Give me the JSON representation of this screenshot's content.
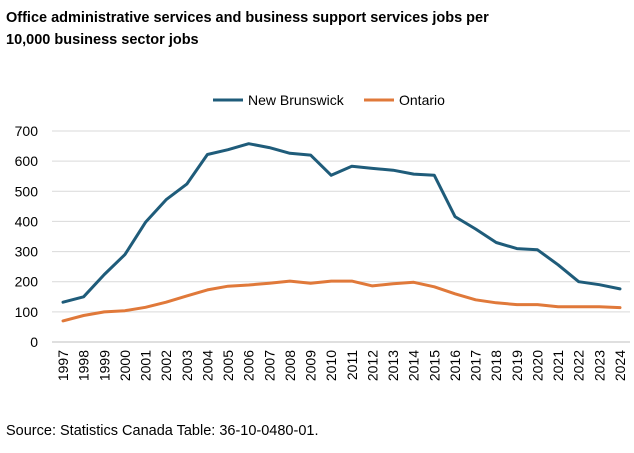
{
  "chart_data": {
    "type": "line",
    "title_lines": [
      "Office administrative services and business support services  jobs per",
      "10,000 business sector jobs"
    ],
    "categories": [
      "1997",
      "1998",
      "1999",
      "2000",
      "2001",
      "2002",
      "2003",
      "2004",
      "2005",
      "2006",
      "2007",
      "2008",
      "2009",
      "2010",
      "2011",
      "2012",
      "2013",
      "2014",
      "2015",
      "2016",
      "2017",
      "2018",
      "2019",
      "2020",
      "2021",
      "2022",
      "2023",
      "2024"
    ],
    "series": [
      {
        "name": "New Brunswick",
        "color": "#1f5c7a",
        "values": [
          132,
          150,
          224,
          290,
          397,
          472,
          524,
          622,
          638,
          658,
          645,
          626,
          620,
          553,
          583,
          576,
          570,
          557,
          553,
          416,
          375,
          330,
          310,
          306,
          256,
          200,
          190,
          176
        ]
      },
      {
        "name": "Ontario",
        "color": "#e0793a",
        "values": [
          70,
          88,
          100,
          104,
          115,
          132,
          153,
          173,
          185,
          189,
          195,
          202,
          195,
          202,
          202,
          186,
          193,
          198,
          183,
          160,
          140,
          130,
          124,
          124,
          117,
          117,
          117,
          114
        ]
      }
    ],
    "ylim": [
      0,
      700
    ],
    "yticks": [
      0,
      100,
      200,
      300,
      400,
      500,
      600,
      700
    ],
    "grid": true,
    "legend": "top-center",
    "xlabel": "",
    "ylabel": "",
    "source": "Source: Statistics Canada Table: 36-10-0480-01."
  }
}
